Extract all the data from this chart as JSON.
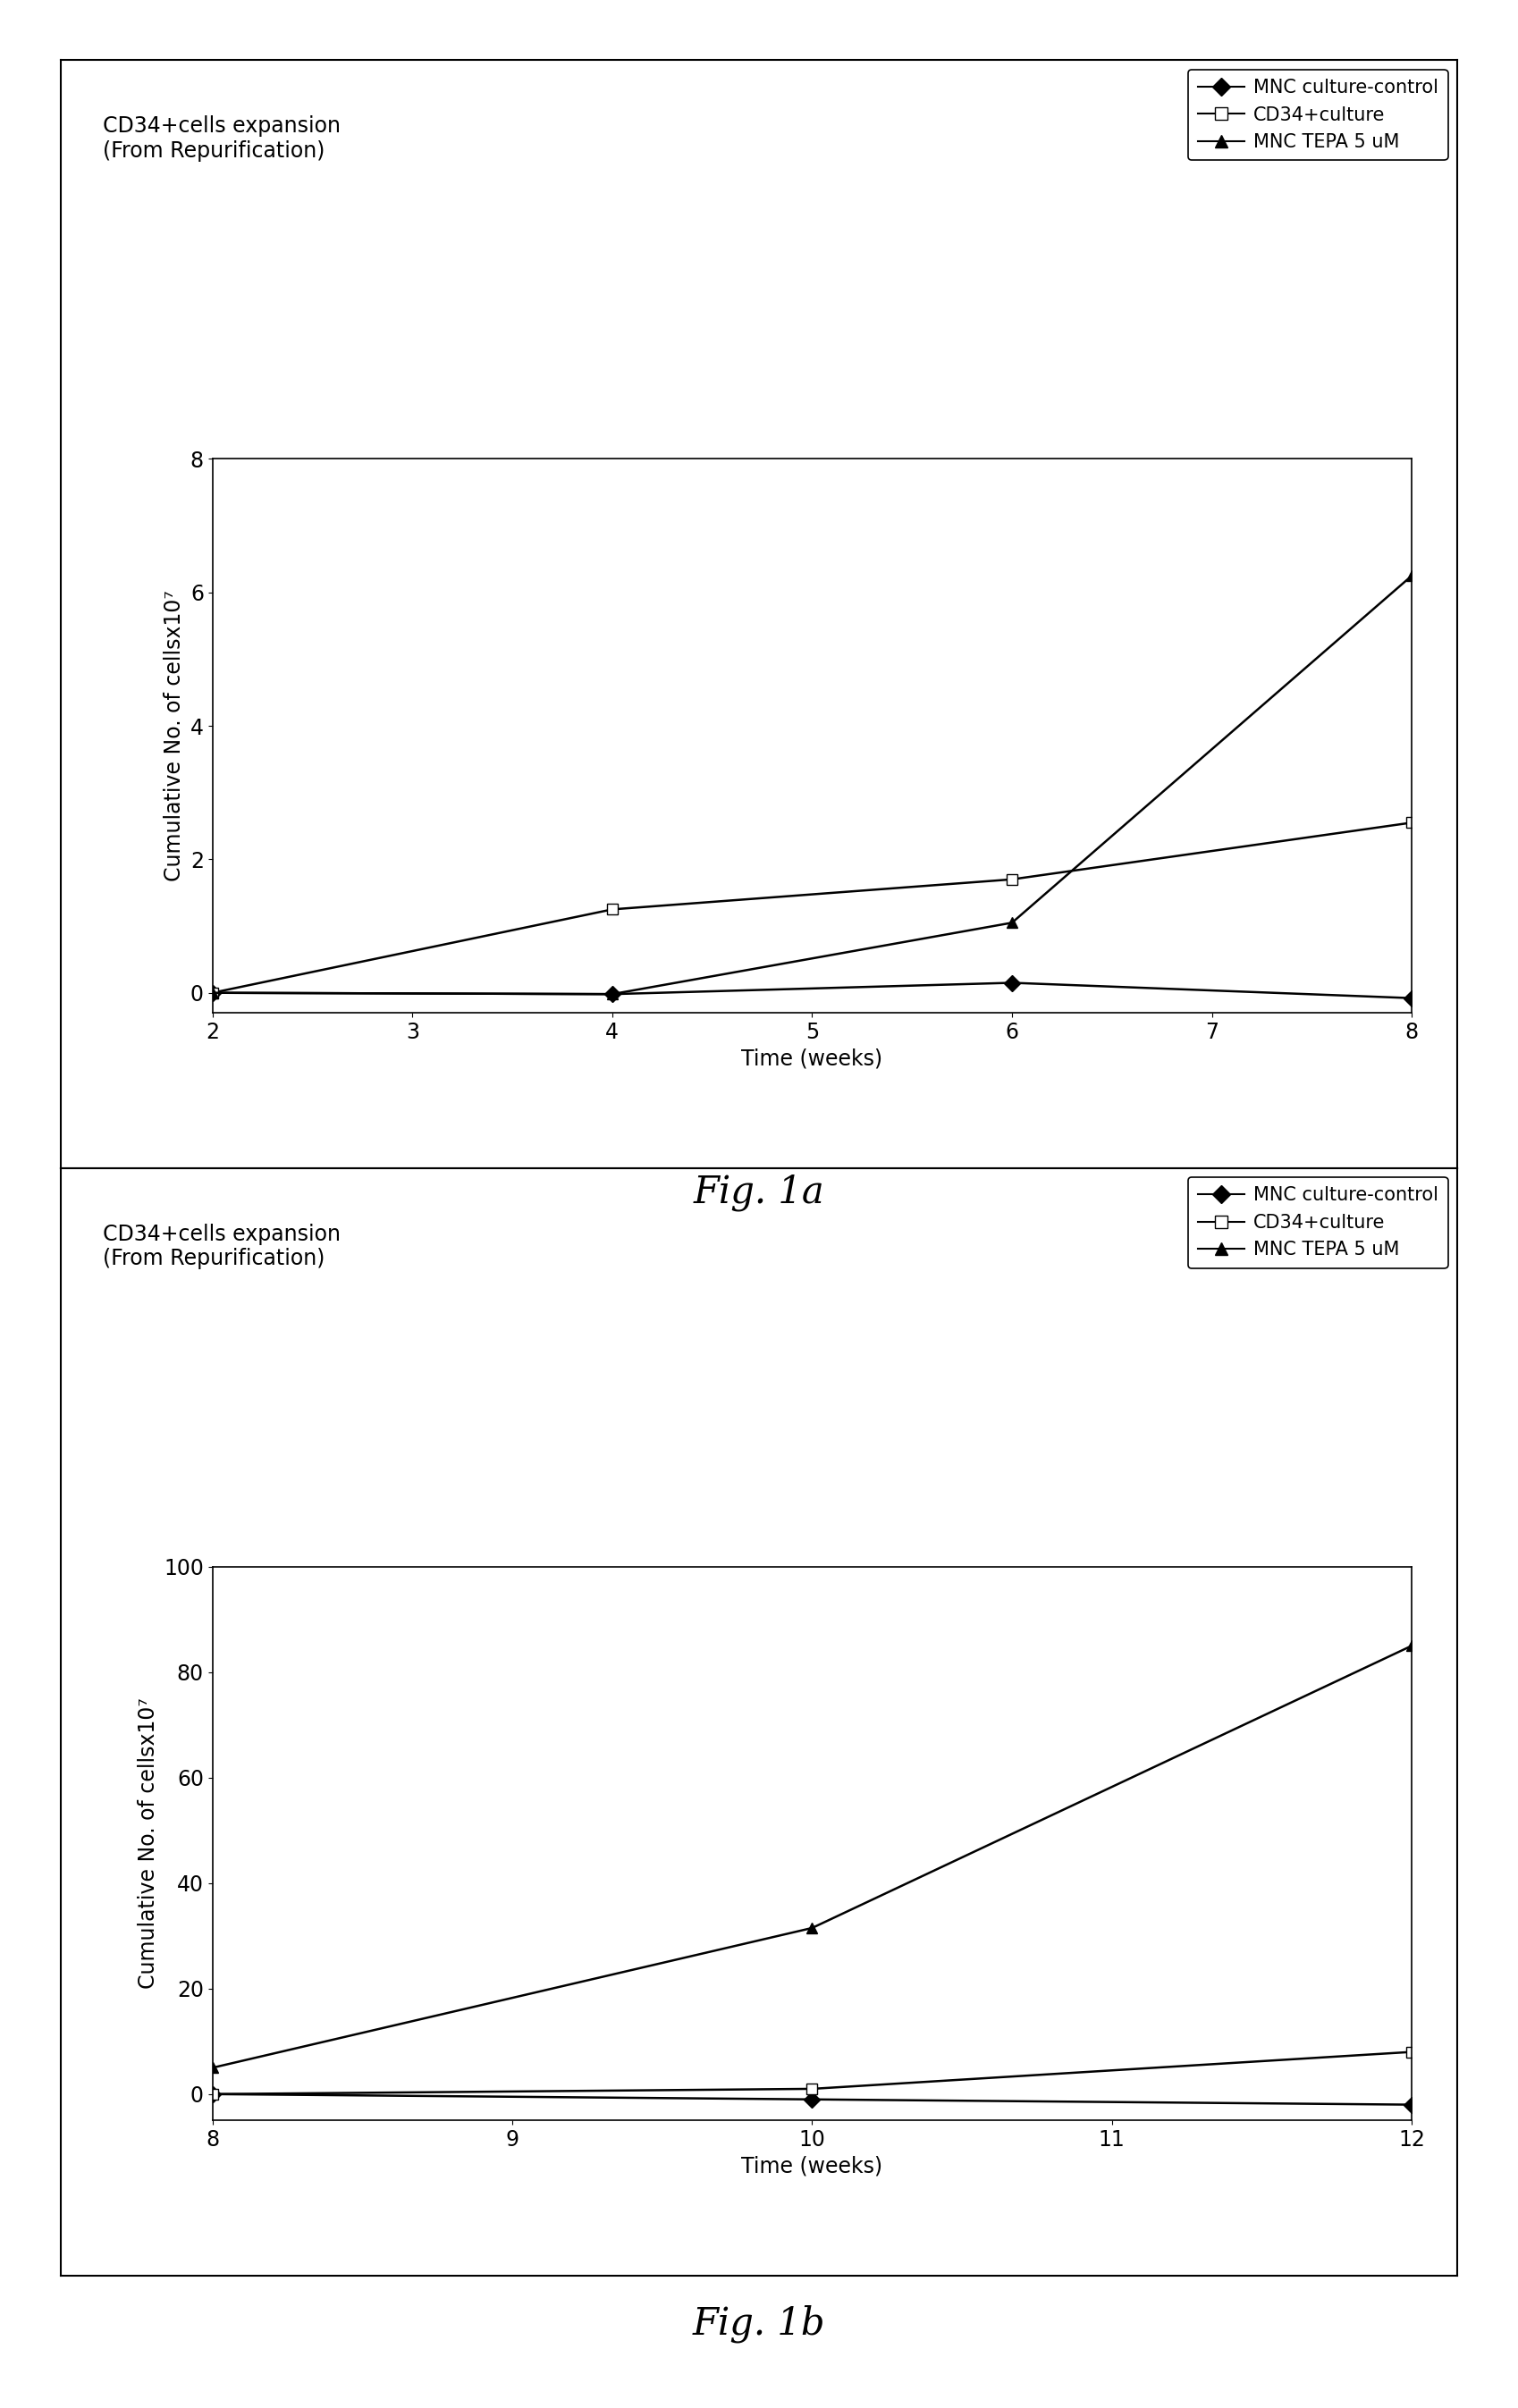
{
  "fig1a": {
    "title_text": "CD34+cells expansion\n(From Repurification)",
    "xlabel": "Time (weeks)",
    "ylabel": "Cumulative No. of cellsx10⁷",
    "xlim": [
      2,
      8
    ],
    "ylim": [
      -0.3,
      8
    ],
    "xticks": [
      2,
      3,
      4,
      5,
      6,
      7,
      8
    ],
    "yticks": [
      0,
      2,
      4,
      6,
      8
    ],
    "series": [
      {
        "label": "MNC culture-control",
        "x": [
          2,
          4,
          6,
          8
        ],
        "y": [
          0.0,
          -0.02,
          0.15,
          -0.08
        ],
        "marker": "D",
        "markerfacecolor": "black",
        "markeredgecolor": "black",
        "linestyle": "-",
        "color": "black",
        "markersize": 9
      },
      {
        "label": "CD34+culture",
        "x": [
          2,
          4,
          6,
          8
        ],
        "y": [
          0.0,
          1.25,
          1.7,
          2.55
        ],
        "marker": "s",
        "markerfacecolor": "white",
        "markeredgecolor": "black",
        "linestyle": "-",
        "color": "black",
        "markersize": 9
      },
      {
        "label": "MNC TEPA 5 uM",
        "x": [
          2,
          4,
          6,
          8
        ],
        "y": [
          0.0,
          -0.02,
          1.05,
          6.25
        ],
        "marker": "^",
        "markerfacecolor": "black",
        "markeredgecolor": "black",
        "linestyle": "-",
        "color": "black",
        "markersize": 9
      }
    ],
    "fig_label": "Fig. 1a"
  },
  "fig1b": {
    "title_text": "CD34+cells expansion\n(From Repurification)",
    "xlabel": "Time (weeks)",
    "ylabel": "Cumulative No. of cellsx10⁷",
    "xlim": [
      8,
      12
    ],
    "ylim": [
      -5,
      100
    ],
    "xticks": [
      8,
      9,
      10,
      11,
      12
    ],
    "yticks": [
      0,
      20,
      40,
      60,
      80,
      100
    ],
    "series": [
      {
        "label": "MNC culture-control",
        "x": [
          8,
          10,
          12
        ],
        "y": [
          0.0,
          -1.0,
          -2.0
        ],
        "marker": "D",
        "markerfacecolor": "black",
        "markeredgecolor": "black",
        "linestyle": "-",
        "color": "black",
        "markersize": 9
      },
      {
        "label": "CD34+culture",
        "x": [
          8,
          10,
          12
        ],
        "y": [
          0.0,
          1.0,
          8.0
        ],
        "marker": "s",
        "markerfacecolor": "white",
        "markeredgecolor": "black",
        "linestyle": "-",
        "color": "black",
        "markersize": 9
      },
      {
        "label": "MNC TEPA 5 uM",
        "x": [
          8,
          10,
          12
        ],
        "y": [
          5.0,
          31.5,
          85.0
        ],
        "marker": "^",
        "markerfacecolor": "black",
        "markeredgecolor": "black",
        "linestyle": "-",
        "color": "black",
        "markersize": 9
      }
    ],
    "fig_label": "Fig. 1b"
  },
  "background_color": "#ffffff",
  "legend_labels": [
    "MNC culture-control",
    "CD34+culture",
    "MNC TEPA 5 uM"
  ],
  "legend_markers": [
    "D",
    "s",
    "^"
  ],
  "legend_marker_fc": [
    "black",
    "white",
    "black"
  ],
  "outer_box_color": "#000000",
  "title_fontsize": 17,
  "tick_fontsize": 17,
  "label_fontsize": 17,
  "legend_fontsize": 15,
  "figlabel_fontsize": 30
}
